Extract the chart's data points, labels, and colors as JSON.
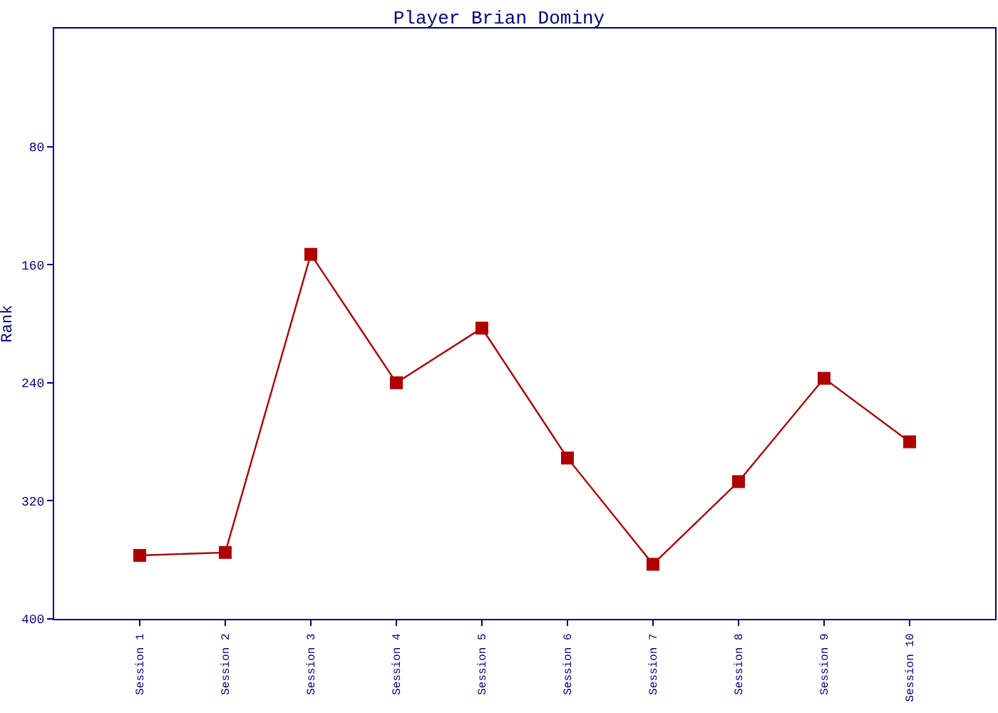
{
  "chart_data": {
    "type": "line",
    "title": "Player Brian Dominy",
    "ylabel": "Rank",
    "categories": [
      "Session 1",
      "Session 2",
      "Session 3",
      "Session 4",
      "Session 5",
      "Session 6",
      "Session 7",
      "Session 8",
      "Session 9",
      "Session 10"
    ],
    "series": [
      {
        "color": "#b00000",
        "values": [
          357,
          355,
          153,
          240,
          203,
          291,
          363,
          307,
          237,
          280
        ]
      }
    ],
    "ylim": [
      400,
      0
    ],
    "yticks": [
      80,
      160,
      240,
      320,
      400
    ],
    "marker": "square",
    "line_style": "solid"
  }
}
